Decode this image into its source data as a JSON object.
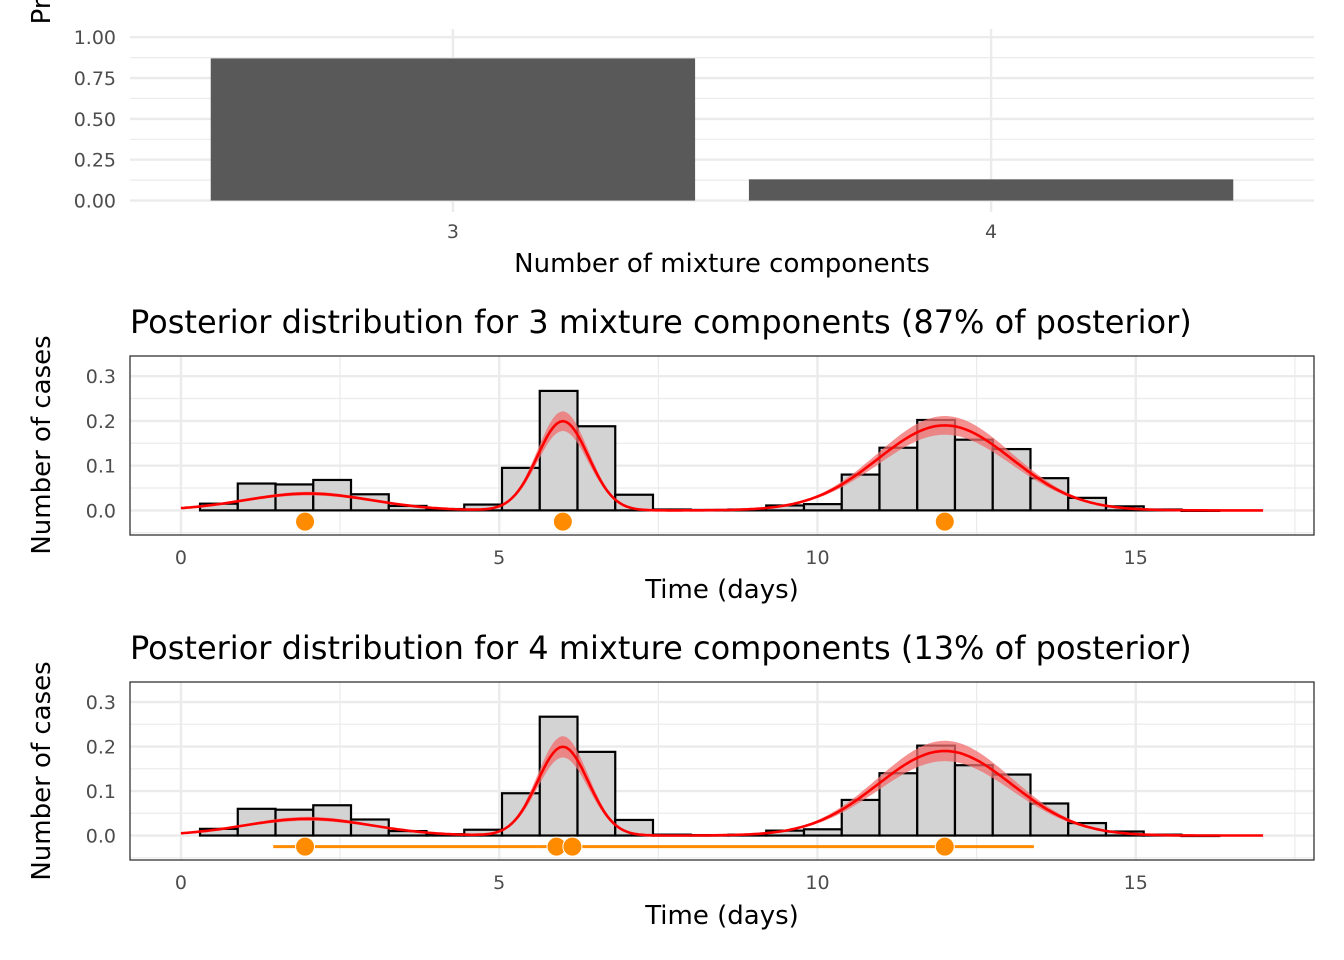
{
  "chart_data": [
    {
      "type": "bar",
      "xlabel": "Number of mixture components",
      "ylabel": "Proportion of posterior distribution",
      "categories": [
        "3",
        "4"
      ],
      "values": [
        0.87,
        0.13
      ],
      "ylim": [
        0,
        1
      ],
      "yticks": [
        0,
        0.25,
        0.5,
        0.75,
        1
      ],
      "ytick_labels": [
        "0.00",
        "0.25",
        "0.50",
        "0.75",
        "1.00"
      ],
      "grid": true,
      "colors": {
        "bar": "#595959",
        "grid": "#ebebeb"
      }
    },
    {
      "type": "histogram",
      "title": "Posterior distribution for 3 mixture components (87% of posterior)",
      "xlabel": "Time (days)",
      "ylabel": "Number of cases",
      "xlim": [
        -0.8,
        17.8
      ],
      "ylim": [
        -0.055,
        0.345
      ],
      "xticks": [
        0,
        5,
        10,
        15
      ],
      "yticks": [
        0,
        0.1,
        0.2,
        0.3
      ],
      "ytick_labels": [
        "0.0",
        "0.1",
        "0.2",
        "0.3"
      ],
      "bins": {
        "start": 0.3,
        "width": 0.593,
        "heights": [
          0.015,
          0.06,
          0.058,
          0.068,
          0.036,
          0.01,
          0.003,
          0.013,
          0.095,
          0.267,
          0.188,
          0.035,
          0.002,
          0.001,
          0.002,
          0.011,
          0.014,
          0.08,
          0.14,
          0.202,
          0.158,
          0.137,
          0.072,
          0.028,
          0.009,
          0.002,
          0.0
        ]
      },
      "density_curve": {
        "x_range": [
          0,
          17
        ],
        "components": [
          {
            "weight": 0.094,
            "mean": 2.0,
            "sd": 1.0
          },
          {
            "weight": 0.2,
            "mean": 6.0,
            "sd": 0.4
          },
          {
            "weight": 0.5,
            "mean": 12.0,
            "sd": 1.05
          }
        ],
        "band_fraction": 0.11
      },
      "component_means": [
        {
          "mean": 1.95,
          "lo": 1.95,
          "hi": 1.95
        },
        {
          "mean": 6.0,
          "lo": 6.0,
          "hi": 6.0
        },
        {
          "mean": 12.0,
          "lo": 12.0,
          "hi": 12.0
        }
      ],
      "means_y": -0.025,
      "grid": true,
      "colors": {
        "bar_fill": "#d3d3d3",
        "bar_edge": "#000000",
        "curve": "#ff0000",
        "band": "#f26c6c",
        "points": "#ff8c00"
      }
    },
    {
      "type": "histogram",
      "title": "Posterior distribution for 4 mixture components (13% of posterior)",
      "xlabel": "Time (days)",
      "ylabel": "Number of cases",
      "xlim": [
        -0.8,
        17.8
      ],
      "ylim": [
        -0.055,
        0.345
      ],
      "xticks": [
        0,
        5,
        10,
        15
      ],
      "yticks": [
        0,
        0.1,
        0.2,
        0.3
      ],
      "ytick_labels": [
        "0.0",
        "0.1",
        "0.2",
        "0.3"
      ],
      "bins": {
        "start": 0.3,
        "width": 0.593,
        "heights": [
          0.015,
          0.06,
          0.058,
          0.068,
          0.036,
          0.01,
          0.003,
          0.013,
          0.095,
          0.267,
          0.188,
          0.035,
          0.002,
          0.001,
          0.002,
          0.011,
          0.014,
          0.08,
          0.14,
          0.202,
          0.158,
          0.137,
          0.072,
          0.028,
          0.009,
          0.002,
          0.0
        ]
      },
      "density_curve": {
        "x_range": [
          0,
          17
        ],
        "components": [
          {
            "weight": 0.094,
            "mean": 2.0,
            "sd": 1.0
          },
          {
            "weight": 0.2,
            "mean": 6.0,
            "sd": 0.4
          },
          {
            "weight": 0.5,
            "mean": 12.0,
            "sd": 1.05
          }
        ],
        "band_fraction": 0.12
      },
      "component_means": [
        {
          "mean": 1.95,
          "lo": 1.45,
          "hi": 5.6
        },
        {
          "mean": 5.9,
          "lo": 5.6,
          "hi": 5.95
        },
        {
          "mean": 6.15,
          "lo": 6.1,
          "hi": 13.4
        },
        {
          "mean": 12.0,
          "lo": 12.0,
          "hi": 12.0
        }
      ],
      "means_y": -0.025,
      "grid": true,
      "colors": {
        "bar_fill": "#d3d3d3",
        "bar_edge": "#000000",
        "curve": "#ff0000",
        "band": "#f26c6c",
        "points": "#ff8c00"
      }
    }
  ]
}
